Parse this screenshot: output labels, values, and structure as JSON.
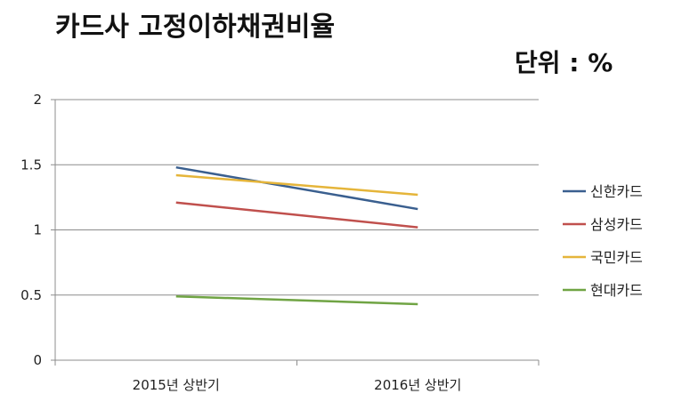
{
  "chart_data": {
    "type": "line",
    "title": "카드사 고정이하채권비율",
    "unit_label": "단위 : %",
    "categories": [
      "2015년 상반기",
      "2016년 상반기"
    ],
    "ylim": [
      0,
      2
    ],
    "yticks": [
      "0",
      "0.5",
      "1",
      "1.5",
      "2"
    ],
    "ytick_values": [
      0,
      0.5,
      1,
      1.5,
      2
    ],
    "grid": true,
    "legend_position": "right",
    "series": [
      {
        "name": "신한카드",
        "values": [
          1.48,
          1.16
        ],
        "color": "#3a5f8f"
      },
      {
        "name": "삼성카드",
        "values": [
          1.21,
          1.02
        ],
        "color": "#c0504d"
      },
      {
        "name": "국민카드",
        "values": [
          1.42,
          1.27
        ],
        "color": "#e5b53a"
      },
      {
        "name": "현대카드",
        "values": [
          0.49,
          0.43
        ],
        "color": "#70a444"
      }
    ]
  }
}
